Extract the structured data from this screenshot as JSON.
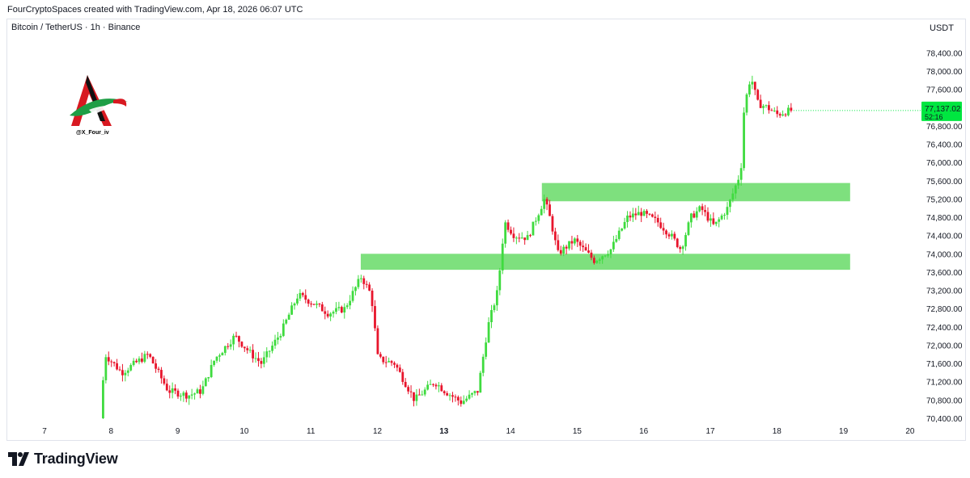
{
  "header": {
    "attribution": "FourCryptoSpaces created with TradingView.com, Apr 18, 2026 06:07 UTC"
  },
  "symbol_line": "Bitcoin / TetherUS · 1h · Binance",
  "currency_label": "USDT",
  "brand": {
    "name": "TradingView"
  },
  "watermark": {
    "handle": "@X_Four_iv"
  },
  "price_badge": {
    "price": "77,137.02",
    "countdown": "52:16",
    "color": "#00e640"
  },
  "colors": {
    "up": "#3fdb3f",
    "down": "#e8152c",
    "zone": "#7ee07e"
  },
  "chart_data": {
    "type": "candlestick",
    "ylim": [
      70300,
      78700
    ],
    "y_ticks": [
      70400,
      70800,
      71200,
      71600,
      72000,
      72400,
      72800,
      73200,
      73600,
      74000,
      74400,
      74800,
      75200,
      75600,
      76000,
      76400,
      76800,
      77200,
      77600,
      78000,
      78400
    ],
    "y_tick_labels": [
      "70,400.00",
      "70,800.00",
      "71,200.00",
      "71,600.00",
      "72,000.00",
      "72,400.00",
      "72,800.00",
      "73,200.00",
      "73,600.00",
      "74,000.00",
      "74,400.00",
      "74,800.00",
      "75,200.00",
      "75,600.00",
      "76,000.00",
      "76,400.00",
      "76,800.00",
      "77,200.00",
      "77,600.00",
      "78,000.00",
      "78,400.00"
    ],
    "x_ticks": [
      7,
      8,
      9,
      10,
      11,
      12,
      13,
      14,
      15,
      16,
      17,
      18,
      19,
      20
    ],
    "x_tick_labels": [
      "7",
      "8",
      "9",
      "10",
      "11",
      "12",
      "13",
      "14",
      "15",
      "16",
      "17",
      "18",
      "19",
      "20"
    ],
    "x_bold_labels": [
      "13"
    ],
    "xlim": [
      7,
      20
    ],
    "zones": [
      {
        "x_start": 11.75,
        "x_end": 19.1,
        "low": 73650,
        "high": 74000
      },
      {
        "x_start": 14.47,
        "x_end": 19.1,
        "low": 75150,
        "high": 75550
      }
    ],
    "keypoints": [
      [
        7.88,
        70400
      ],
      [
        7.95,
        71800
      ],
      [
        8.2,
        71400
      ],
      [
        8.5,
        71700
      ],
      [
        8.6,
        71800
      ],
      [
        8.9,
        71000
      ],
      [
        9.2,
        70900
      ],
      [
        9.4,
        71000
      ],
      [
        9.6,
        71700
      ],
      [
        9.9,
        72200
      ],
      [
        10.15,
        71800
      ],
      [
        10.3,
        71600
      ],
      [
        10.6,
        72300
      ],
      [
        10.85,
        73100
      ],
      [
        11.1,
        72900
      ],
      [
        11.3,
        72700
      ],
      [
        11.55,
        72800
      ],
      [
        11.8,
        73500
      ],
      [
        11.95,
        73100
      ],
      [
        12.05,
        71700
      ],
      [
        12.3,
        71600
      ],
      [
        12.6,
        70800
      ],
      [
        12.9,
        71200
      ],
      [
        13.05,
        71000
      ],
      [
        13.3,
        70750
      ],
      [
        13.55,
        71000
      ],
      [
        13.7,
        72400
      ],
      [
        13.85,
        73200
      ],
      [
        13.95,
        74700
      ],
      [
        14.1,
        74400
      ],
      [
        14.3,
        74350
      ],
      [
        14.55,
        75200
      ],
      [
        14.65,
        74700
      ],
      [
        14.75,
        74000
      ],
      [
        15.0,
        74300
      ],
      [
        15.3,
        73850
      ],
      [
        15.55,
        74100
      ],
      [
        15.8,
        74800
      ],
      [
        16.0,
        74900
      ],
      [
        16.25,
        74700
      ],
      [
        16.45,
        74400
      ],
      [
        16.6,
        74100
      ],
      [
        16.75,
        74800
      ],
      [
        16.9,
        75000
      ],
      [
        17.1,
        74600
      ],
      [
        17.3,
        75000
      ],
      [
        17.5,
        75800
      ],
      [
        17.55,
        77200
      ],
      [
        17.65,
        77900
      ],
      [
        17.75,
        77300
      ],
      [
        17.9,
        77200
      ],
      [
        18.05,
        77050
      ],
      [
        18.15,
        77100
      ],
      [
        18.25,
        77137
      ]
    ]
  }
}
